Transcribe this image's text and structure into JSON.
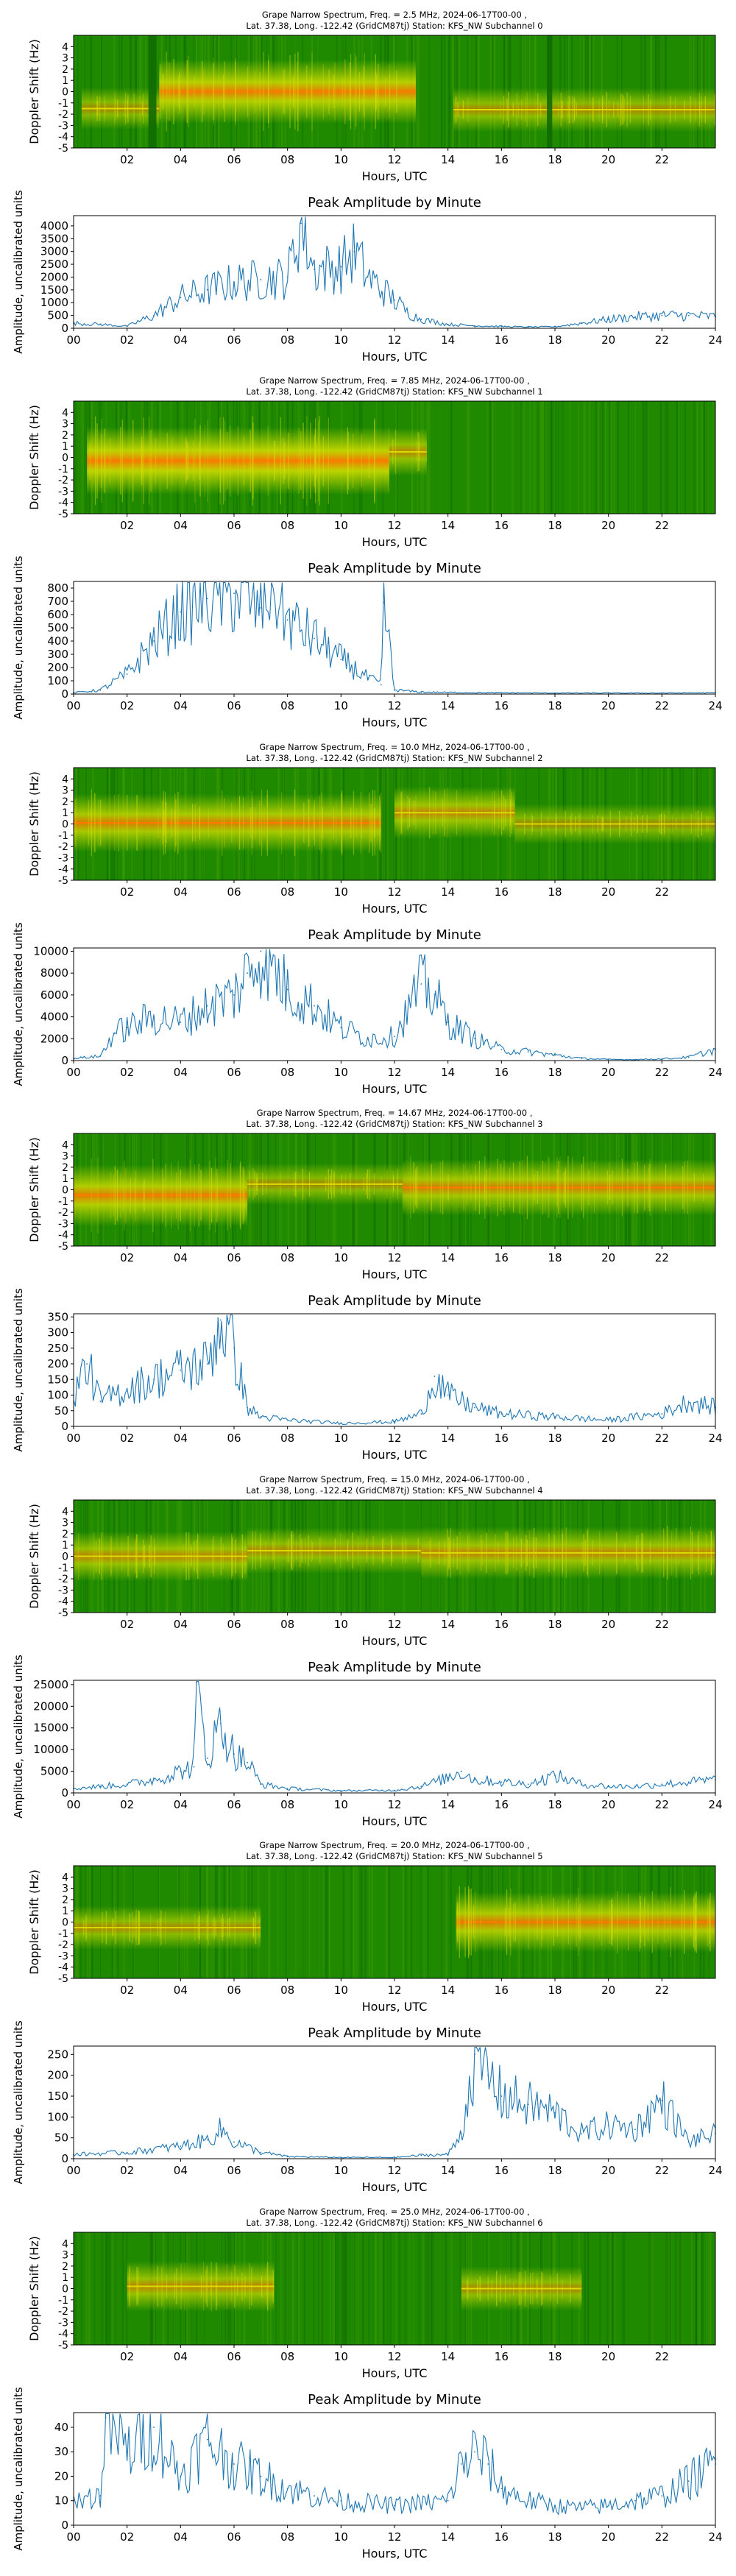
{
  "figure": {
    "axis_labels": {
      "x": "Hours, UTC",
      "spectrum_y": "Doppler Shift (Hz)",
      "amplitude_y": "Amplitude, uncalibrated units"
    },
    "amplitude_title": "Peak Amplitude by Minute",
    "spectrum_x_ticks": [
      "02",
      "04",
      "06",
      "08",
      "10",
      "12",
      "14",
      "16",
      "18",
      "20",
      "22"
    ],
    "amplitude_x_ticks": [
      "00",
      "02",
      "04",
      "06",
      "08",
      "10",
      "12",
      "14",
      "16",
      "18",
      "20",
      "22",
      "24"
    ],
    "doppler_ticks": [
      "4",
      "3",
      "2",
      "1",
      "0",
      "-1",
      "-2",
      "-3",
      "-4",
      "-5"
    ]
  },
  "colors": {
    "spectrum_background": "#1f8a00",
    "spectrum_mid": "#d8e000",
    "spectrum_hot": "#ff7a00",
    "line": "#1f77b4"
  },
  "chart_data": [
    {
      "type": "heatmap",
      "title_line1": "Grape Narrow Spectrum, Freq. = 2.5 MHz, 2024-06-17T00-00 ,",
      "title_line2": "Lat.  37.38, Long. -122.42 (GridCM87tj) Station: KFS_NW Subchannel 0",
      "xlabel": "Hours, UTC",
      "ylabel": "Doppler Shift (Hz)",
      "xlim": [
        0,
        24
      ],
      "ylim": [
        -5,
        5
      ],
      "activity": [
        {
          "start": 3.2,
          "end": 12.8,
          "center": 0.0,
          "intensity": 0.9
        },
        {
          "start": 0.3,
          "end": 3.2,
          "center": -1.5,
          "intensity": 0.35
        },
        {
          "start": 14.2,
          "end": 24,
          "center": -1.6,
          "intensity": 0.4
        }
      ],
      "gaps": [
        [
          2.8,
          3.1
        ],
        [
          17.7,
          17.9
        ]
      ]
    },
    {
      "type": "line",
      "title": "Peak Amplitude by Minute",
      "xlabel": "Hours, UTC",
      "ylabel": "Amplitude, uncalibrated units",
      "xlim": [
        0,
        24
      ],
      "ylim": [
        0,
        4400
      ],
      "yticks": [
        0,
        500,
        1000,
        1500,
        2000,
        2500,
        3000,
        3500,
        4000
      ],
      "x": [
        0,
        1,
        2,
        3,
        4,
        5,
        6,
        7,
        8,
        8.5,
        9,
        10,
        10.5,
        11,
        12,
        12.5,
        13,
        14,
        15,
        16,
        17,
        18,
        19,
        20,
        21,
        22,
        23,
        24
      ],
      "y": [
        200,
        150,
        80,
        500,
        1200,
        1500,
        1800,
        1900,
        2000,
        4100,
        2300,
        2400,
        3000,
        2000,
        1100,
        600,
        350,
        150,
        100,
        70,
        50,
        60,
        200,
        350,
        450,
        500,
        500,
        450
      ]
    },
    {
      "type": "heatmap",
      "title_line1": "Grape Narrow Spectrum, Freq. = 7.85 MHz, 2024-06-17T00-00 ,",
      "title_line2": "Lat.  37.38, Long. -122.42 (GridCM87tj) Station: KFS_NW Subchannel 1",
      "xlabel": "Hours, UTC",
      "ylabel": "Doppler Shift (Hz)",
      "xlim": [
        0,
        24
      ],
      "ylim": [
        -5,
        5
      ],
      "activity": [
        {
          "start": 0.5,
          "end": 11.8,
          "center": -0.3,
          "intensity": 1.0
        },
        {
          "start": 11.8,
          "end": 13.2,
          "center": 0.5,
          "intensity": 0.5
        }
      ],
      "gaps": []
    },
    {
      "type": "line",
      "title": "Peak Amplitude by Minute",
      "xlabel": "Hours, UTC",
      "ylabel": "Amplitude, uncalibrated units",
      "xlim": [
        0,
        24
      ],
      "ylim": [
        0,
        850
      ],
      "yticks": [
        0,
        100,
        200,
        300,
        400,
        500,
        600,
        700,
        800
      ],
      "x": [
        0,
        1,
        2,
        3,
        4,
        5,
        6,
        7,
        7.4,
        8,
        9,
        10,
        11,
        11.5,
        11.6,
        12,
        13,
        14,
        16,
        18,
        20,
        22,
        24
      ],
      "y": [
        10,
        30,
        150,
        400,
        620,
        720,
        760,
        650,
        830,
        560,
        420,
        260,
        120,
        70,
        690,
        30,
        15,
        12,
        10,
        8,
        8,
        8,
        10
      ]
    },
    {
      "type": "heatmap",
      "title_line1": "Grape Narrow Spectrum, Freq. = 10.0 MHz, 2024-06-17T00-00 ,",
      "title_line2": "Lat.  37.38, Long. -122.42 (GridCM87tj) Station: KFS_NW Subchannel 2",
      "xlabel": "Hours, UTC",
      "ylabel": "Doppler Shift (Hz)",
      "xlim": [
        0,
        24
      ],
      "ylim": [
        -5,
        5
      ],
      "activity": [
        {
          "start": 0,
          "end": 11.5,
          "center": 0.1,
          "intensity": 0.75
        },
        {
          "start": 12.0,
          "end": 16.5,
          "center": 1.0,
          "intensity": 0.6
        },
        {
          "start": 16.5,
          "end": 24,
          "center": 0.0,
          "intensity": 0.3
        }
      ],
      "gaps": []
    },
    {
      "type": "line",
      "title": "Peak Amplitude by Minute",
      "xlabel": "Hours, UTC",
      "ylabel": "Amplitude, uncalibrated units",
      "xlim": [
        0,
        24
      ],
      "ylim": [
        0,
        10300
      ],
      "yticks": [
        0,
        2000,
        4000,
        6000,
        8000,
        10000
      ],
      "x": [
        0,
        1,
        1.5,
        2,
        3,
        4,
        5,
        6,
        6.5,
        7,
        8,
        9,
        10,
        11,
        12,
        13,
        13.5,
        14,
        15,
        16,
        17,
        18,
        19,
        20,
        21,
        22,
        23,
        24
      ],
      "y": [
        200,
        400,
        2500,
        3000,
        4000,
        3500,
        5000,
        6000,
        8000,
        10000,
        6500,
        5000,
        3000,
        2000,
        2200,
        7000,
        6000,
        3500,
        2000,
        1000,
        800,
        500,
        200,
        100,
        100,
        150,
        300,
        1000
      ]
    },
    {
      "type": "heatmap",
      "title_line1": "Grape Narrow Spectrum, Freq. = 14.67 MHz, 2024-06-17T00-00 ,",
      "title_line2": "Lat.  37.38, Long. -122.42 (GridCM87tj) Station: KFS_NW Subchannel 3",
      "xlabel": "Hours, UTC",
      "ylabel": "Doppler Shift (Hz)",
      "xlim": [
        0,
        24
      ],
      "ylim": [
        -5,
        5
      ],
      "activity": [
        {
          "start": 0,
          "end": 6.5,
          "center": -0.5,
          "intensity": 0.85
        },
        {
          "start": 6.5,
          "end": 12.3,
          "center": 0.5,
          "intensity": 0.35
        },
        {
          "start": 12.3,
          "end": 24,
          "center": 0.2,
          "intensity": 0.7
        }
      ],
      "gaps": []
    },
    {
      "type": "line",
      "title": "Peak Amplitude by Minute",
      "xlabel": "Hours, UTC",
      "ylabel": "Amplitude, uncalibrated units",
      "xlim": [
        0,
        24
      ],
      "ylim": [
        0,
        360
      ],
      "yticks": [
        0,
        50,
        100,
        150,
        200,
        250,
        300,
        350
      ],
      "x": [
        0,
        0.5,
        1,
        2,
        3,
        4,
        5,
        5.5,
        6,
        6.5,
        7,
        8,
        10,
        12,
        13,
        13.5,
        14,
        15,
        16,
        18,
        20,
        22,
        23,
        24
      ],
      "y": [
        100,
        200,
        80,
        120,
        150,
        180,
        200,
        340,
        250,
        60,
        30,
        20,
        10,
        15,
        40,
        160,
        100,
        60,
        40,
        30,
        20,
        40,
        80,
        60
      ]
    },
    {
      "type": "heatmap",
      "title_line1": "Grape Narrow Spectrum, Freq. = 15.0 MHz, 2024-06-17T00-00 ,",
      "title_line2": "Lat.  37.38, Long. -122.42 (GridCM87tj) Station: KFS_NW Subchannel 4",
      "xlabel": "Hours, UTC",
      "ylabel": "Doppler Shift (Hz)",
      "xlim": [
        0,
        24
      ],
      "ylim": [
        -5,
        5
      ],
      "activity": [
        {
          "start": 0,
          "end": 6.5,
          "center": 0.0,
          "intensity": 0.55
        },
        {
          "start": 6.5,
          "end": 13.0,
          "center": 0.5,
          "intensity": 0.45
        },
        {
          "start": 13.0,
          "end": 24,
          "center": 0.3,
          "intensity": 0.6
        }
      ],
      "gaps": []
    },
    {
      "type": "line",
      "title": "Peak Amplitude by Minute",
      "xlabel": "Hours, UTC",
      "ylabel": "Amplitude, uncalibrated units",
      "xlim": [
        0,
        24
      ],
      "ylim": [
        0,
        26000
      ],
      "yticks": [
        0,
        5000,
        10000,
        15000,
        20000,
        25000
      ],
      "x": [
        0,
        1,
        2,
        3,
        4,
        4.5,
        4.6,
        5,
        5.5,
        6,
        6.5,
        7,
        8,
        10,
        12,
        13,
        14,
        14.5,
        15,
        16,
        17,
        18,
        19,
        20,
        21,
        22,
        23,
        24
      ],
      "y": [
        1000,
        1500,
        2000,
        3000,
        5000,
        6000,
        25500,
        8000,
        16000,
        9000,
        7000,
        2000,
        1000,
        500,
        600,
        1500,
        3500,
        5000,
        3000,
        2500,
        2000,
        4000,
        2000,
        1500,
        1500,
        2000,
        2500,
        3000
      ]
    },
    {
      "type": "heatmap",
      "title_line1": "Grape Narrow Spectrum, Freq. = 20.0 MHz, 2024-06-17T00-00 ,",
      "title_line2": "Lat.  37.38, Long. -122.42 (GridCM87tj) Station: KFS_NW Subchannel 5",
      "xlabel": "Hours, UTC",
      "ylabel": "Doppler Shift (Hz)",
      "xlim": [
        0,
        24
      ],
      "ylim": [
        -5,
        5
      ],
      "activity": [
        {
          "start": 0,
          "end": 7.0,
          "center": -0.5,
          "intensity": 0.4
        },
        {
          "start": 14.3,
          "end": 24,
          "center": 0.0,
          "intensity": 0.8
        }
      ],
      "gaps": []
    },
    {
      "type": "line",
      "title": "Peak Amplitude by Minute",
      "xlabel": "Hours, UTC",
      "ylabel": "Amplitude, uncalibrated units",
      "xlim": [
        0,
        24
      ],
      "ylim": [
        0,
        270
      ],
      "yticks": [
        0,
        50,
        100,
        150,
        200,
        250
      ],
      "x": [
        0,
        2,
        4,
        5,
        5.5,
        6,
        7,
        8,
        10,
        12,
        13,
        14,
        14.5,
        15,
        15.5,
        16,
        17,
        18,
        19,
        20,
        21,
        22,
        23,
        24
      ],
      "y": [
        10,
        15,
        30,
        45,
        70,
        40,
        15,
        5,
        3,
        3,
        8,
        10,
        60,
        250,
        200,
        150,
        130,
        110,
        60,
        80,
        70,
        140,
        40,
        60
      ]
    },
    {
      "type": "heatmap",
      "title_line1": "Grape Narrow Spectrum, Freq. = 25.0 MHz, 2024-06-17T00-00 ,",
      "title_line2": "Lat.  37.38, Long. -122.42 (GridCM87tj) Station: KFS_NW Subchannel 6",
      "xlabel": "Hours, UTC",
      "ylabel": "Doppler Shift (Hz)",
      "xlim": [
        0,
        24
      ],
      "ylim": [
        -5,
        5
      ],
      "activity": [
        {
          "start": 2.0,
          "end": 7.5,
          "center": 0.2,
          "intensity": 0.55
        },
        {
          "start": 14.5,
          "end": 19.0,
          "center": 0.0,
          "intensity": 0.4
        }
      ],
      "gaps": []
    },
    {
      "type": "line",
      "title": "Peak Amplitude by Minute",
      "xlabel": "Hours, UTC",
      "ylabel": "Amplitude, uncalibrated units",
      "xlim": [
        0,
        24
      ],
      "ylim": [
        0,
        46
      ],
      "yticks": [
        0,
        10,
        20,
        30,
        40
      ],
      "x": [
        0,
        1,
        1.2,
        2,
        3,
        4,
        5,
        6,
        7,
        8,
        9,
        10,
        12,
        14,
        14.5,
        15,
        15.5,
        16,
        17,
        18,
        19,
        20,
        21,
        22,
        23,
        24
      ],
      "y": [
        10,
        12,
        44,
        30,
        40,
        20,
        35,
        25,
        20,
        15,
        12,
        10,
        8,
        10,
        25,
        30,
        25,
        15,
        10,
        8,
        7,
        8,
        10,
        12,
        18,
        25
      ]
    }
  ]
}
